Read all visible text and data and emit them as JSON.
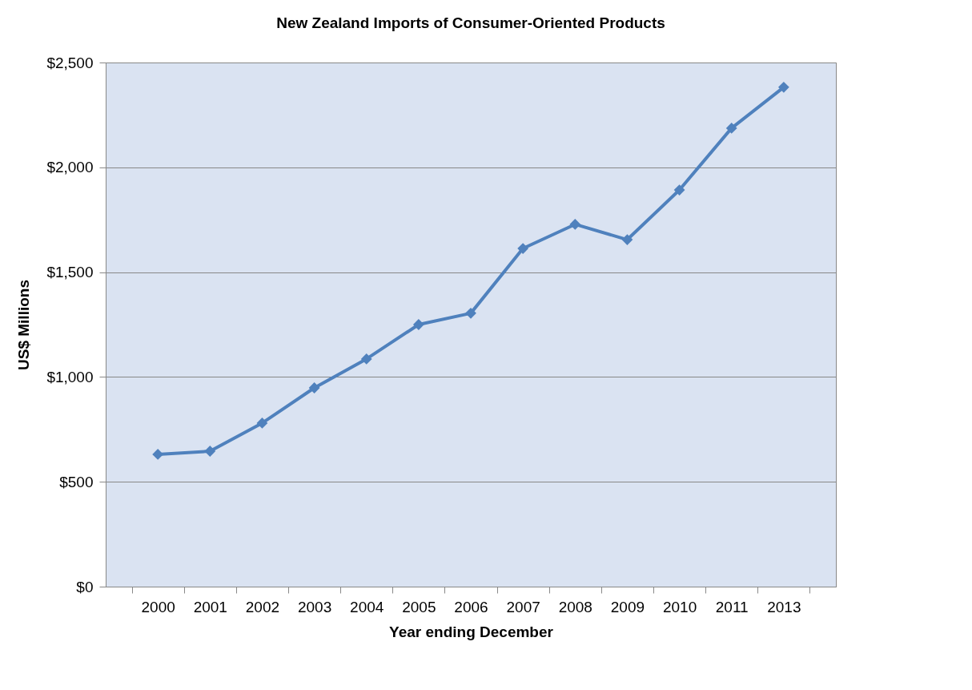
{
  "chart_data": {
    "type": "line",
    "title": "New Zealand Imports of Consumer-Oriented Products",
    "xlabel": "Year ending December",
    "ylabel": "US$ Millions",
    "categories": [
      "2000",
      "2001",
      "2002",
      "2003",
      "2004",
      "2005",
      "2006",
      "2007",
      "2008",
      "2009",
      "2010",
      "2011",
      "2013"
    ],
    "series": [
      {
        "color": "#4f81bd",
        "values": [
          631,
          646,
          780,
          948,
          1086,
          1250,
          1304,
          1613,
          1728,
          1655,
          1892,
          2187,
          2382
        ]
      }
    ],
    "ylim": [
      0,
      2500
    ],
    "yticks": [
      {
        "value": 0,
        "label": "$0"
      },
      {
        "value": 500,
        "label": "$500"
      },
      {
        "value": 1000,
        "label": "$1,000"
      },
      {
        "value": 1500,
        "label": "$1,500"
      },
      {
        "value": 2000,
        "label": "$2,000"
      },
      {
        "value": 2500,
        "label": "$2,500"
      }
    ],
    "grid": "y",
    "legend": false,
    "marker": "diamond",
    "line_style": "solid"
  }
}
